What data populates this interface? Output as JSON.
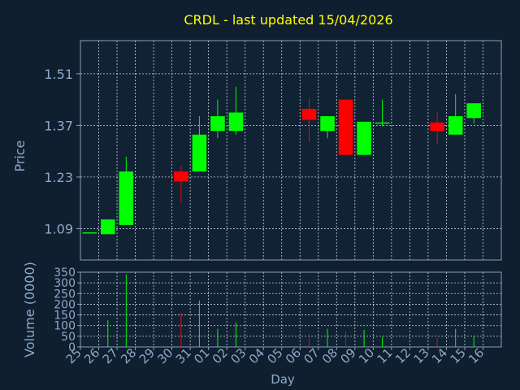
{
  "title": "CRDL - last updated 15/04/2026",
  "colors": {
    "background": "#0f1f30",
    "panel": "#102234",
    "axis_text": "#8fa8c8",
    "title": "#ffff00",
    "grid": "#c8d4e0",
    "frame": "#8aa0b8",
    "up": "#00ff00",
    "down": "#ff0000"
  },
  "chart_data": [
    {
      "type": "candlestick",
      "ylabel": "Price",
      "ylim": [
        1.005,
        1.6
      ],
      "yticks": [
        "1.09",
        "1.23",
        "1.37",
        "1.51"
      ],
      "grid": true,
      "categories": [
        "25",
        "26",
        "27",
        "28",
        "29",
        "30",
        "31",
        "01",
        "02",
        "03",
        "04",
        "05",
        "06",
        "07",
        "08",
        "09",
        "10",
        "11",
        "12",
        "13",
        "14",
        "15",
        "16"
      ],
      "candles": [
        {
          "x": "25",
          "open": 1.08,
          "close": 1.08,
          "high": 1.08,
          "low": 1.08
        },
        {
          "x": "26",
          "open": 1.075,
          "close": 1.115,
          "high": 1.115,
          "low": 1.075
        },
        {
          "x": "27",
          "open": 1.1,
          "close": 1.245,
          "high": 1.285,
          "low": 1.1
        },
        {
          "x": "30",
          "open": 1.245,
          "close": 1.218,
          "high": 1.26,
          "low": 1.16
        },
        {
          "x": "31",
          "open": 1.245,
          "close": 1.345,
          "high": 1.395,
          "low": 1.245
        },
        {
          "x": "01",
          "open": 1.355,
          "close": 1.395,
          "high": 1.44,
          "low": 1.335
        },
        {
          "x": "02",
          "open": 1.355,
          "close": 1.405,
          "high": 1.475,
          "low": 1.345
        },
        {
          "x": "06",
          "open": 1.415,
          "close": 1.385,
          "high": 1.445,
          "low": 1.325
        },
        {
          "x": "07",
          "open": 1.355,
          "close": 1.395,
          "high": 1.395,
          "low": 1.335
        },
        {
          "x": "08",
          "open": 1.44,
          "close": 1.29,
          "high": 1.44,
          "low": 1.29
        },
        {
          "x": "09",
          "open": 1.29,
          "close": 1.38,
          "high": 1.38,
          "low": 1.29
        },
        {
          "x": "10",
          "open": 1.378,
          "close": 1.378,
          "high": 1.44,
          "low": 1.368
        },
        {
          "x": "13",
          "open": 1.378,
          "close": 1.355,
          "high": 1.405,
          "low": 1.32
        },
        {
          "x": "14",
          "open": 1.345,
          "close": 1.395,
          "high": 1.455,
          "low": 1.345
        },
        {
          "x": "15",
          "open": 1.39,
          "close": 1.43,
          "high": 1.43,
          "low": 1.375
        }
      ]
    },
    {
      "type": "bar",
      "ylabel": "Volume (0000)",
      "xlabel": "Day",
      "ylim": [
        0,
        350
      ],
      "yticks": [
        "0",
        "50",
        "100",
        "150",
        "200",
        "250",
        "300",
        "350"
      ],
      "grid": true,
      "categories": [
        "25",
        "26",
        "27",
        "28",
        "29",
        "30",
        "31",
        "01",
        "02",
        "03",
        "04",
        "05",
        "06",
        "07",
        "08",
        "09",
        "10",
        "11",
        "12",
        "13",
        "14",
        "15",
        "16"
      ],
      "bars": [
        {
          "x": "26",
          "value": 125,
          "direction": "up"
        },
        {
          "x": "27",
          "value": 340,
          "direction": "up"
        },
        {
          "x": "30",
          "value": 160,
          "direction": "down"
        },
        {
          "x": "31",
          "value": 218,
          "direction": "up"
        },
        {
          "x": "01",
          "value": 85,
          "direction": "up"
        },
        {
          "x": "02",
          "value": 115,
          "direction": "up"
        },
        {
          "x": "06",
          "value": 62,
          "direction": "down"
        },
        {
          "x": "07",
          "value": 85,
          "direction": "up"
        },
        {
          "x": "08",
          "value": 72,
          "direction": "down"
        },
        {
          "x": "09",
          "value": 80,
          "direction": "up"
        },
        {
          "x": "10",
          "value": 48,
          "direction": "up"
        },
        {
          "x": "13",
          "value": 42,
          "direction": "down"
        },
        {
          "x": "14",
          "value": 85,
          "direction": "up"
        },
        {
          "x": "15",
          "value": 50,
          "direction": "up"
        }
      ]
    }
  ]
}
